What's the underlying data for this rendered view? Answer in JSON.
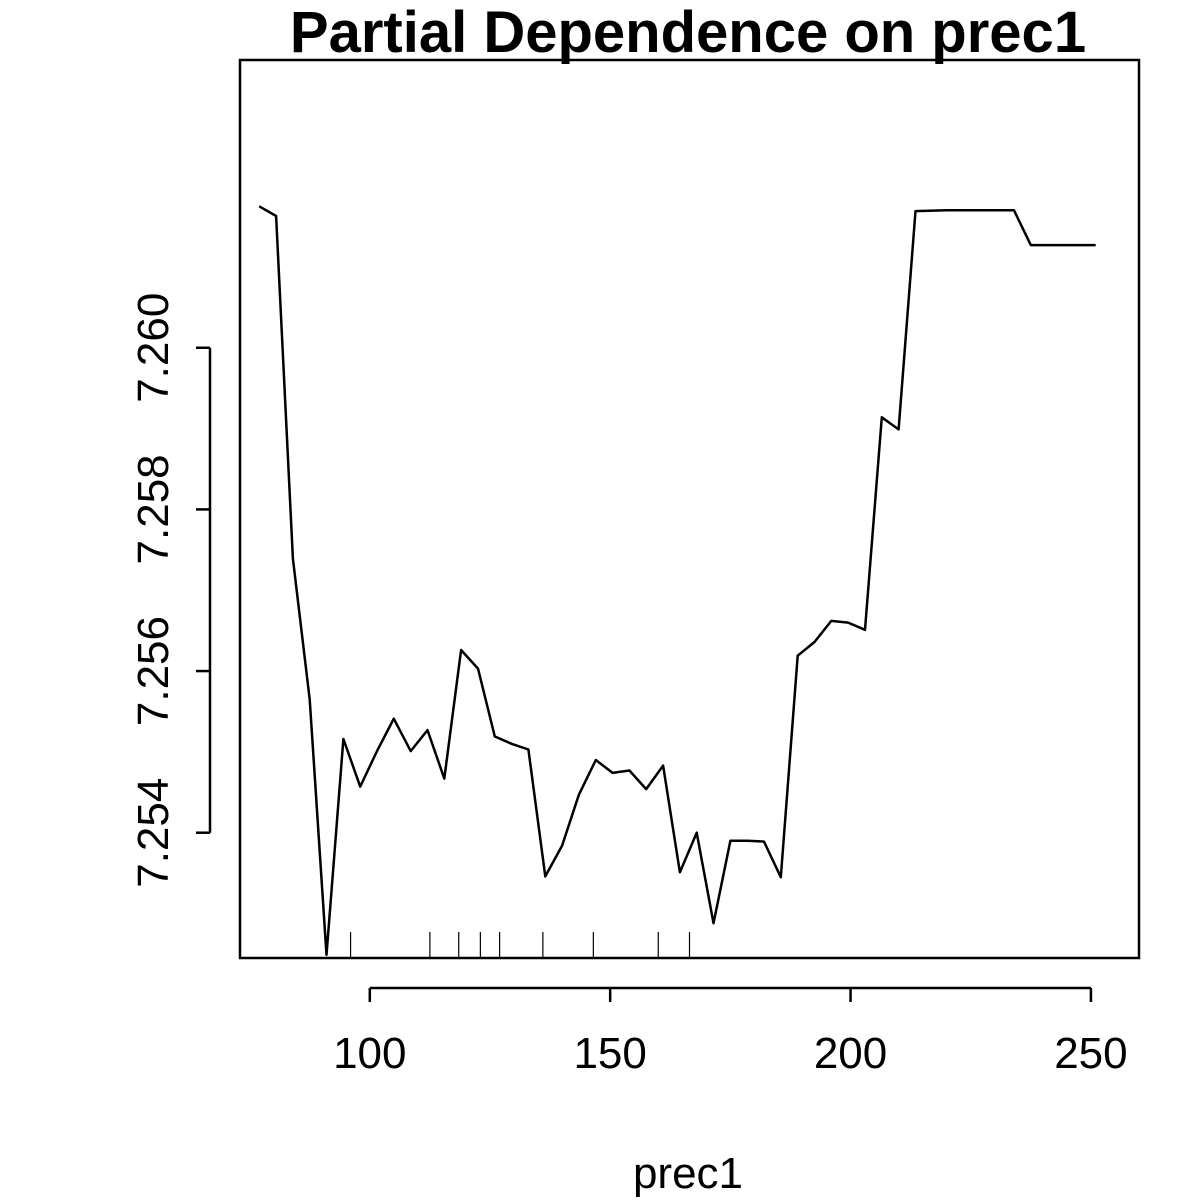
{
  "chart_data": {
    "type": "line",
    "title": "Partial Dependence on prec1",
    "xlabel": "prec1",
    "ylabel": "",
    "xlim": [
      73,
      260
    ],
    "ylim": [
      7.25245,
      7.26356
    ],
    "x_ticks": [
      100,
      150,
      200,
      250
    ],
    "x_tick_labels": [
      "100",
      "150",
      "200",
      "250"
    ],
    "y_ticks": [
      7.254,
      7.256,
      7.258,
      7.26
    ],
    "y_tick_labels": [
      "7.254",
      "7.256",
      "7.258",
      "7.260"
    ],
    "grid": false,
    "legend": "none",
    "line_color": "#000000",
    "series": [
      {
        "x": [
          77,
          80.5,
          84,
          87.5,
          91,
          94.5,
          98,
          101.5,
          105,
          108.5,
          112,
          115.5,
          119,
          122.5,
          126,
          129.5,
          133,
          136.5,
          140,
          143.5,
          147,
          150.5,
          154,
          157.5,
          161,
          164.5,
          168,
          171.5,
          175,
          178.5,
          182,
          185.5,
          189,
          192.5,
          196,
          199.5,
          203,
          206.5,
          210,
          213.5,
          220,
          227,
          234,
          237.5,
          244,
          251
        ],
        "y": [
          7.26175,
          7.26163,
          7.25739,
          7.25565,
          7.25249,
          7.25516,
          7.25457,
          7.25501,
          7.25541,
          7.25501,
          7.25527,
          7.25467,
          7.25626,
          7.25603,
          7.25519,
          7.2551,
          7.25503,
          7.25346,
          7.25384,
          7.25447,
          7.2549,
          7.25474,
          7.25477,
          7.25454,
          7.25483,
          7.25351,
          7.254,
          7.25288,
          7.2539,
          7.2539,
          7.25389,
          7.25345,
          7.25619,
          7.25636,
          7.25662,
          7.2566,
          7.25651,
          7.25914,
          7.25899,
          7.26169,
          7.2617,
          7.2617,
          7.2617,
          7.26127,
          7.26127,
          7.26127
        ]
      }
    ],
    "rug": [
      96,
      112.5,
      118.5,
      123,
      127,
      136,
      146.5,
      160,
      166.5
    ]
  }
}
